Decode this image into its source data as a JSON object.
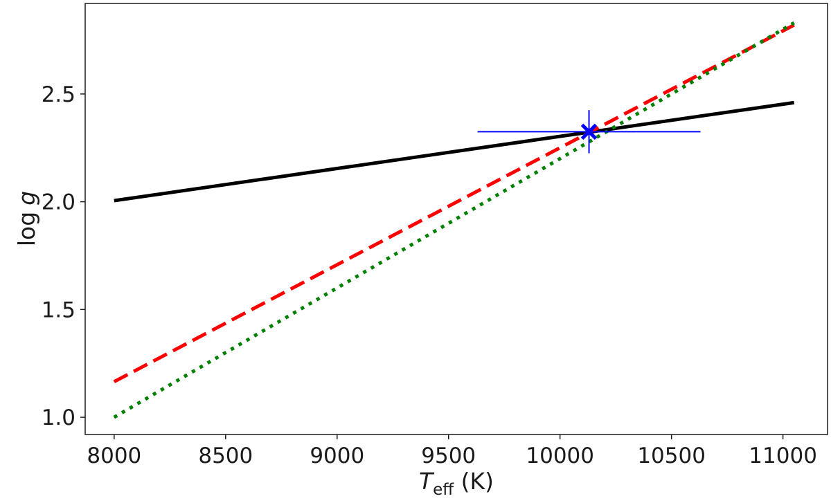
{
  "chart_data": {
    "type": "line",
    "title": "",
    "xlabel": {
      "symbol": "T",
      "subscript": "eff",
      "unit": " (K)"
    },
    "ylabel": {
      "prefix": "log",
      "symbol": "g"
    },
    "xlim": [
      7870,
      11200
    ],
    "ylim": [
      0.92,
      2.92
    ],
    "xticks": [
      8000,
      8500,
      9000,
      9500,
      10000,
      10500,
      11000
    ],
    "yticks": [
      1.0,
      1.5,
      2.0,
      2.5
    ],
    "ytick_labels": [
      "1.0",
      "1.5",
      "2.0",
      "2.5"
    ],
    "grid": false,
    "legend": "none",
    "series": [
      {
        "style": "solid",
        "color": "#000000",
        "x": [
          8000,
          11050
        ],
        "y": [
          2.005,
          2.46
        ]
      },
      {
        "style": "dashed",
        "color": "#ff0000",
        "x": [
          8000,
          11050
        ],
        "y": [
          1.165,
          2.82
        ]
      },
      {
        "style": "dotted",
        "color": "#008000",
        "x": [
          8000,
          11050
        ],
        "y": [
          1.0,
          2.83
        ]
      }
    ],
    "marker_point": {
      "symbol": "x",
      "color": "#0000ff",
      "x": 10130,
      "y": 2.325,
      "x_error": 500,
      "y_error": 0.1
    }
  }
}
